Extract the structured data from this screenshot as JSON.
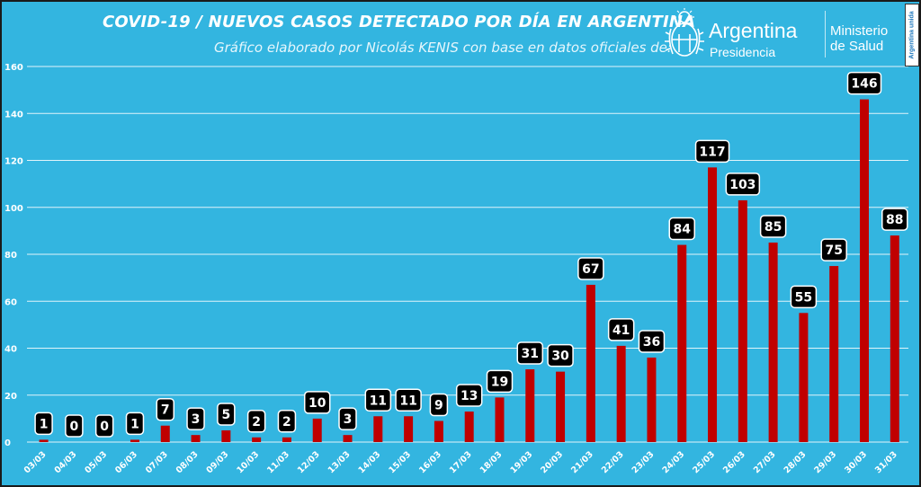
{
  "header": {
    "title": "COVID-19  /  NUEVOS CASOS DETECTADO POR DÍA EN ARGENTINA",
    "subtitle": "Gráfico elaborado por Nicolás KENIS con base en datos oficiales de:"
  },
  "logos": {
    "presidencia_name": "Argentina",
    "presidencia_sub": "Presidencia",
    "ministerio_line1": "Ministerio",
    "ministerio_line2": "de Salud",
    "badge_text": "Argentina unida"
  },
  "colors": {
    "background": "#33b5e0",
    "bar": "#c00000",
    "label_box": "#000000",
    "label_text": "#ffffff",
    "grid": "#ffffff"
  },
  "chart_data": {
    "type": "bar",
    "title": "COVID-19  /  NUEVOS CASOS DETECTADO POR DÍA EN ARGENTINA",
    "xlabel": "",
    "ylabel": "",
    "ylim": [
      0,
      160
    ],
    "yticks": [
      0,
      20,
      40,
      60,
      80,
      100,
      120,
      140,
      160
    ],
    "grid": true,
    "categories": [
      "03/03",
      "04/03",
      "05/03",
      "06/03",
      "07/03",
      "08/03",
      "09/03",
      "10/03",
      "11/03",
      "12/03",
      "13/03",
      "14/03",
      "15/03",
      "16/03",
      "17/03",
      "18/03",
      "19/03",
      "20/03",
      "21/03",
      "22/03",
      "23/03",
      "24/03",
      "25/03",
      "26/03",
      "27/03",
      "28/03",
      "29/03",
      "30/03",
      "31/03"
    ],
    "values": [
      1,
      0,
      0,
      1,
      7,
      3,
      5,
      2,
      2,
      10,
      3,
      11,
      11,
      9,
      13,
      19,
      31,
      30,
      67,
      41,
      36,
      84,
      117,
      103,
      85,
      55,
      75,
      146,
      88
    ]
  }
}
